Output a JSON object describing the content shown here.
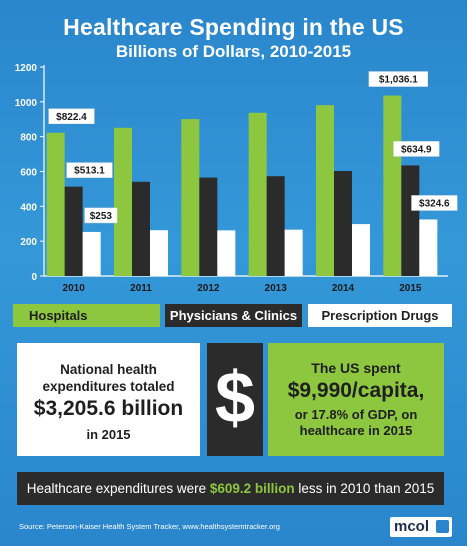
{
  "header": {
    "title": "Healthcare Spending in the US",
    "subtitle": "Billions of Dollars, 2010-2015"
  },
  "chart_data": {
    "type": "bar",
    "categories": [
      "2010",
      "2011",
      "2012",
      "2013",
      "2014",
      "2015"
    ],
    "series": [
      {
        "name": "Hospitals",
        "values": [
          822.4,
          851,
          901,
          937,
          981,
          1036.1
        ],
        "labels": [
          "$822.4",
          "",
          "",
          "",
          "",
          "$1,036.1"
        ],
        "color": "#8dc63f"
      },
      {
        "name": "Physicians & Clinics",
        "values": [
          513.1,
          541,
          565,
          573,
          603,
          634.9
        ],
        "labels": [
          "$513.1",
          "",
          "",
          "",
          "",
          "$634.9"
        ],
        "color": "#2b2b2b"
      },
      {
        "name": "Prescription Drugs",
        "values": [
          253,
          263,
          262,
          266,
          298,
          324.6
        ],
        "labels": [
          "$253",
          "",
          "",
          "",
          "",
          "$324.6"
        ],
        "color": "#ffffff"
      }
    ],
    "yticks": [
      0,
      200,
      400,
      600,
      800,
      1000,
      1200
    ],
    "ylim": [
      0,
      1200
    ],
    "grid": false,
    "legend": "bottom"
  },
  "legend": {
    "hospitals": "Hospitals",
    "physicians": "Physicians & Clinics",
    "drugs": "Prescription Drugs"
  },
  "stats": {
    "left_line1": "National health expenditures totaled",
    "left_big": "$3,205.6 billion",
    "left_small": "in 2015",
    "dollar_symbol": "$",
    "right_line1": "The US spent",
    "right_big": "$9,990/capita,",
    "right_small": "or 17.8% of GDP, on healthcare in 2015"
  },
  "banner": {
    "prefix": "Healthcare expenditures were ",
    "highlight": "$609.2 billion",
    "suffix": " less in 2010 than 2015"
  },
  "footer": {
    "source": "Source:  Peterson-Kaiser Health System Tracker, www.healthsystemtracker.org",
    "logo": "mcol"
  },
  "colors": {
    "background": "#2a86cc",
    "green": "#8dc63f",
    "dark": "#2b2b2b",
    "white": "#ffffff"
  }
}
